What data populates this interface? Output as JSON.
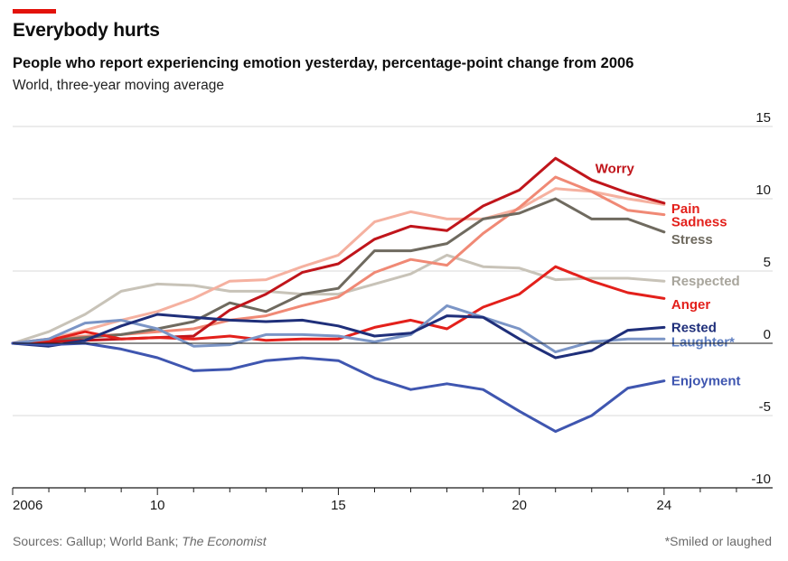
{
  "header": {
    "title": "Everybody hurts",
    "subtitle": "People who report experiencing emotion yesterday, percentage-point change from 2006",
    "subsubtitle": "World, three-year moving average"
  },
  "footer": {
    "sources_prefix": "Sources: Gallup; World Bank; ",
    "sources_italic": "The Economist",
    "footnote": "*Smiled or laughed"
  },
  "colors": {
    "accent": "#e3120b",
    "grid": "#d9d9d9",
    "zero_line": "#1a1a1a"
  },
  "chart_data": {
    "type": "line",
    "title": "Everybody hurts",
    "xlabel": "",
    "ylabel": "",
    "xlim": [
      2006,
      2027
    ],
    "ylim": [
      -10,
      15
    ],
    "yticks": [
      15,
      10,
      5,
      0,
      -5,
      -10
    ],
    "ytick_labels": [
      "15",
      "10",
      "5",
      "0",
      "-5",
      "-10"
    ],
    "xticks": [
      2006,
      2010,
      2015,
      2020,
      2024
    ],
    "xtick_labels": [
      "2006",
      "10",
      "15",
      "20",
      "24"
    ],
    "x": [
      2006,
      2007,
      2008,
      2009,
      2010,
      2011,
      2012,
      2013,
      2014,
      2015,
      2016,
      2017,
      2018,
      2019,
      2020,
      2021,
      2022,
      2023,
      2024
    ],
    "series": [
      {
        "name": "Respected",
        "color": "#c8c3b8",
        "values": [
          0,
          0.8,
          2,
          3.6,
          4.1,
          4,
          3.6,
          3.6,
          3.4,
          3.4,
          4.1,
          4.8,
          6.1,
          5.3,
          5.2,
          4.4,
          4.5,
          4.5,
          4.3
        ]
      },
      {
        "name": "Sadness",
        "color": "#f5b1a0",
        "values": [
          0,
          0.3,
          0.9,
          1.6,
          2.2,
          3.1,
          4.3,
          4.4,
          5.3,
          6.1,
          8.4,
          9.1,
          8.6,
          8.6,
          9.3,
          10.7,
          10.5,
          10,
          9.6
        ]
      },
      {
        "name": "Pain",
        "color": "#f08975",
        "values": [
          0,
          0.3,
          0.5,
          0.6,
          0.8,
          1,
          1.6,
          1.9,
          2.6,
          3.2,
          4.9,
          5.8,
          5.4,
          7.6,
          9.4,
          11.5,
          10.5,
          9.2,
          8.9
        ]
      },
      {
        "name": "Stress",
        "color": "#6f6a5f",
        "values": [
          0,
          0.2,
          0.4,
          0.6,
          1,
          1.5,
          2.8,
          2.2,
          3.4,
          3.8,
          6.4,
          6.4,
          6.9,
          8.6,
          9,
          10,
          8.6,
          8.6,
          7.7
        ]
      },
      {
        "name": "Worry",
        "color": "#c0151b",
        "values": [
          0,
          0.1,
          0.2,
          0.3,
          0.4,
          0.5,
          2.3,
          3.4,
          4.9,
          5.5,
          7.2,
          8.1,
          7.8,
          9.5,
          10.6,
          12.8,
          11.3,
          10.4,
          9.7
        ]
      },
      {
        "name": "Anger",
        "color": "#e3201b",
        "values": [
          0,
          0.2,
          0.8,
          0.3,
          0.4,
          0.3,
          0.5,
          0.2,
          0.3,
          0.3,
          1.1,
          1.6,
          1,
          2.5,
          3.4,
          5.3,
          4.3,
          3.5,
          3.1
        ]
      },
      {
        "name": "Laughter*",
        "color": "#7b95c6",
        "values": [
          0,
          0.3,
          1.4,
          1.6,
          1,
          -0.2,
          -0.1,
          0.6,
          0.6,
          0.5,
          0.1,
          0.6,
          2.6,
          1.8,
          1,
          -0.6,
          0.1,
          0.3,
          0.3
        ]
      },
      {
        "name": "Rested",
        "color": "#1f2f7a",
        "values": [
          0,
          -0.2,
          0.2,
          1.2,
          2,
          1.8,
          1.6,
          1.5,
          1.6,
          1.2,
          0.5,
          0.7,
          1.9,
          1.8,
          0.3,
          -1,
          -0.5,
          0.9,
          1.1
        ]
      },
      {
        "name": "Enjoyment",
        "color": "#3f56b0",
        "values": [
          0,
          -0.1,
          0,
          -0.4,
          -1,
          -1.9,
          -1.8,
          -1.2,
          -1,
          -1.2,
          -2.4,
          -3.2,
          -2.8,
          -3.2,
          -4.7,
          -6.1,
          -5,
          -3.1,
          -2.6
        ]
      }
    ],
    "labels": [
      {
        "text": "Worry",
        "series": "Worry",
        "color": "#c0151b",
        "x": 2022.1,
        "y": 12.1
      },
      {
        "text": "Pain",
        "series": "Pain",
        "color": "#e3201b",
        "x": 2024.2,
        "y": 9.3
      },
      {
        "text": "Sadness",
        "series": "Sadness",
        "color": "#e3201b",
        "x": 2024.2,
        "y": 8.4
      },
      {
        "text": "Stress",
        "series": "Stress",
        "color": "#6f6a5f",
        "x": 2024.2,
        "y": 7.2
      },
      {
        "text": "Respected",
        "series": "Respected",
        "color": "#a8a59c",
        "x": 2024.2,
        "y": 4.3
      },
      {
        "text": "Anger",
        "series": "Anger",
        "color": "#e3201b",
        "x": 2024.2,
        "y": 2.7
      },
      {
        "text": "Rested",
        "series": "Rested",
        "color": "#1f2f7a",
        "x": 2024.2,
        "y": 1.1
      },
      {
        "text": "Laughter*",
        "series": "Laughter*",
        "color": "#5b7cc0",
        "x": 2024.2,
        "y": 0.1
      },
      {
        "text": "Enjoyment",
        "series": "Enjoyment",
        "color": "#3f56b0",
        "x": 2024.2,
        "y": -2.6
      }
    ]
  }
}
